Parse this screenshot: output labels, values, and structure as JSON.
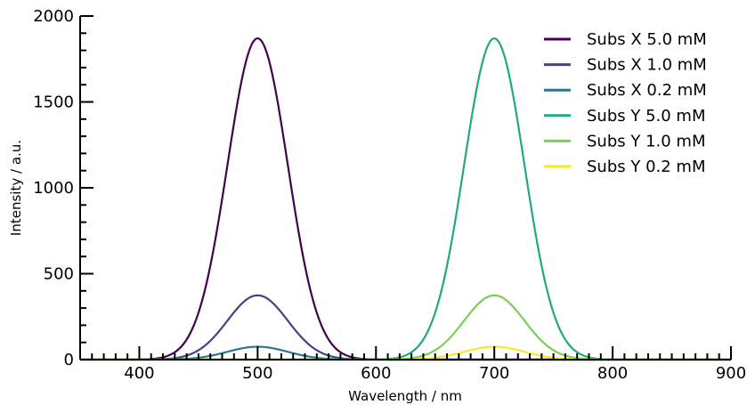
{
  "chart_data": {
    "type": "line",
    "title": "",
    "xlabel": "Wavelength / nm",
    "ylabel": "Intensity / a.u.",
    "xlim": [
      350,
      900
    ],
    "ylim": [
      0,
      2000
    ],
    "xticks": [
      400,
      500,
      600,
      700,
      800,
      900
    ],
    "yticks": [
      0,
      500,
      1000,
      1500,
      2000
    ],
    "x_major_tick_labels": [
      "400",
      "500",
      "600",
      "700",
      "800",
      "900"
    ],
    "y_major_tick_labels": [
      "0",
      "500",
      "1000",
      "1500",
      "2000"
    ],
    "grid": false,
    "legend_position": "top-right",
    "series": [
      {
        "name": "Subs X 5.0 mM",
        "color": "#440154",
        "peak_x": 500,
        "peak_y": 1870,
        "fwhm_nm": 60
      },
      {
        "name": "Subs X 1.0 mM",
        "color": "#414487",
        "peak_x": 500,
        "peak_y": 374,
        "fwhm_nm": 60
      },
      {
        "name": "Subs X 0.2 mM",
        "color": "#2a788e",
        "peak_x": 500,
        "peak_y": 75,
        "fwhm_nm": 60
      },
      {
        "name": "Subs Y 5.0 mM",
        "color": "#22a884",
        "peak_x": 700,
        "peak_y": 1870,
        "fwhm_nm": 60
      },
      {
        "name": "Subs Y 1.0 mM",
        "color": "#7ad151",
        "peak_x": 700,
        "peak_y": 374,
        "fwhm_nm": 60
      },
      {
        "name": "Subs Y 0.2 mM",
        "color": "#fde725",
        "peak_x": 700,
        "peak_y": 75,
        "fwhm_nm": 60
      }
    ]
  }
}
